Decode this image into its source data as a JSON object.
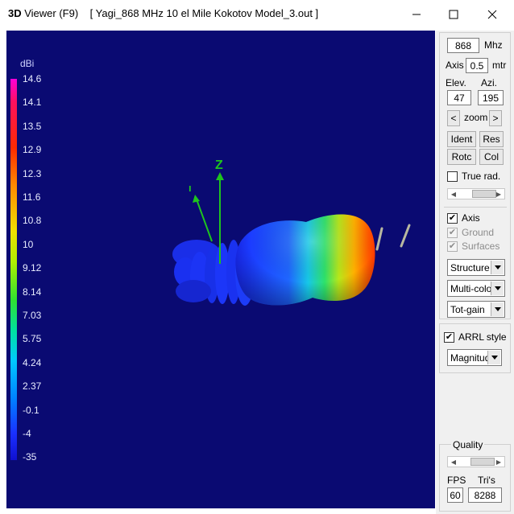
{
  "window": {
    "app_name_prefix": "3D",
    "app_name_rest": " Viewer  (F9)",
    "document_title": "[  Yagi_868 MHz 10 el Mile Kokotov Model_3.out ]",
    "minimize_icon": "minimize-icon",
    "maximize_icon": "maximize-icon",
    "close_icon": "close-icon"
  },
  "scale": {
    "unit": "dBi",
    "ticks": [
      "14.6",
      "14.1",
      "13.5",
      "12.9",
      "12.3",
      "11.6",
      "10.8",
      "10",
      "9.12",
      "8.14",
      "7.03",
      "5.75",
      "4.24",
      "2.37",
      "-0.1",
      "-4",
      "-35"
    ]
  },
  "scene": {
    "axis_label": "Z",
    "axis_small_label": "ı"
  },
  "panel": {
    "freq_value": "868",
    "freq_unit": "Mhz",
    "axis_label": "Axis",
    "axis_value": "0.5",
    "axis_unit": "mtr",
    "elev_label": "Elev.",
    "azi_label": "Azi.",
    "elev_value": "47",
    "azi_value": "195",
    "zoom_left": "<",
    "zoom_label": "zoom",
    "zoom_right": ">",
    "btn_ident": "Ident",
    "btn_res": "Res",
    "btn_rotc": "Rotc",
    "btn_col": "Col",
    "true_rad_label": "True rad.",
    "true_rad_checked": false,
    "axis_chk_label": "Axis",
    "axis_checked": true,
    "ground_label": "Ground",
    "ground_checked": true,
    "surfaces_label": "Surfaces",
    "surfaces_checked": true,
    "combo_structure": "Structure",
    "combo_color": "Multi-color",
    "combo_gain": "Tot-gain",
    "arrl_label": "ARRL style",
    "arrl_checked": true,
    "combo_magnitude": "Magnitude",
    "quality_label": "Quality",
    "fps_label": "FPS",
    "tris_label": "Tri's",
    "fps_value": "60",
    "tris_value": "8288"
  }
}
